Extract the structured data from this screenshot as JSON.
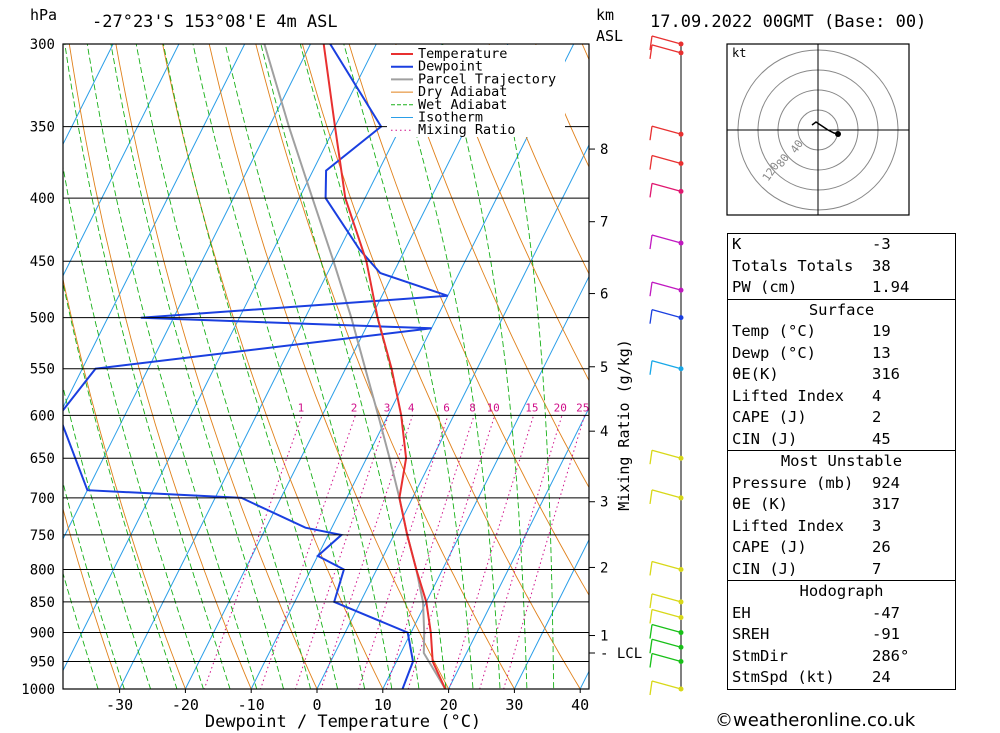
{
  "header": {
    "pressure_unit": "hPa",
    "location": "-27°23'S 153°08'E 4m ASL",
    "km_unit": "km",
    "asl": "ASL",
    "datetime": "17.09.2022 00GMT (Base: 00)"
  },
  "chart_data": {
    "type": "skew-t",
    "xlabel": "Dewpoint / Temperature (°C)",
    "ylabel_right": "Mixing Ratio (g/kg)",
    "xlim": [
      -40,
      40
    ],
    "ylim": [
      1000,
      300
    ],
    "x_ticks": [
      "-30",
      "-20",
      "-10",
      "0",
      "10",
      "20",
      "30",
      "40"
    ],
    "x_tick_values": [
      -30,
      -20,
      -10,
      0,
      10,
      20,
      30,
      40
    ],
    "pressure_levels": [
      300,
      350,
      400,
      450,
      500,
      550,
      600,
      650,
      700,
      750,
      800,
      850,
      900,
      950,
      1000
    ],
    "km_ticks": [
      {
        "km": "1",
        "p": 905
      },
      {
        "km": "2",
        "p": 797
      },
      {
        "km": "3",
        "p": 705
      },
      {
        "km": "4",
        "p": 618
      },
      {
        "km": "5",
        "p": 548
      },
      {
        "km": "6",
        "p": 478
      },
      {
        "km": "7",
        "p": 418
      },
      {
        "km": "8",
        "p": 365
      }
    ],
    "lcl": {
      "label": "LCL",
      "p": 935
    },
    "mixing_ratio_labels": [
      "1",
      "2",
      "3",
      "4",
      "6",
      "8",
      "10",
      "15",
      "20",
      "25"
    ],
    "legend": [
      "Temperature",
      "Dewpoint",
      "Parcel Trajectory",
      "Dry Adiabat",
      "Wet Adiabat",
      "Isotherm",
      "Mixing Ratio"
    ],
    "colors": {
      "temperature": "#e83030",
      "dewpoint": "#1a3fe0",
      "parcel": "#a0a0a0",
      "dry_adiabat": "#e0801a",
      "wet_adiabat": "#18b018",
      "isotherm": "#2a9ee8",
      "mixing_ratio": "#d0108a"
    },
    "temperature": [
      [
        1000,
        19.5
      ],
      [
        950,
        15.5
      ],
      [
        900,
        13
      ],
      [
        850,
        10
      ],
      [
        800,
        6
      ],
      [
        750,
        2
      ],
      [
        700,
        -2
      ],
      [
        650,
        -4
      ],
      [
        600,
        -8
      ],
      [
        550,
        -13
      ],
      [
        500,
        -19
      ],
      [
        450,
        -25
      ],
      [
        400,
        -33
      ],
      [
        350,
        -40
      ],
      [
        300,
        -48
      ]
    ],
    "dewpoint": [
      [
        1000,
        13
      ],
      [
        950,
        12.5
      ],
      [
        900,
        9.5
      ],
      [
        850,
        -4
      ],
      [
        800,
        -5
      ],
      [
        780,
        -10
      ],
      [
        750,
        -8
      ],
      [
        740,
        -14
      ],
      [
        700,
        -26
      ],
      [
        690,
        -50
      ],
      [
        600,
        -60
      ],
      [
        550,
        -58
      ],
      [
        510,
        -10
      ],
      [
        500,
        -55
      ],
      [
        480,
        -10
      ],
      [
        460,
        -22
      ],
      [
        440,
        -27
      ],
      [
        400,
        -36
      ],
      [
        380,
        -38
      ],
      [
        350,
        -33
      ],
      [
        300,
        -47
      ]
    ],
    "parcel": [
      [
        1000,
        19.5
      ],
      [
        935,
        13.5
      ],
      [
        900,
        12
      ],
      [
        850,
        9.5
      ],
      [
        800,
        6
      ],
      [
        750,
        2
      ],
      [
        700,
        -2
      ],
      [
        650,
        -6.5
      ],
      [
        600,
        -11.5
      ],
      [
        550,
        -17
      ],
      [
        500,
        -23
      ],
      [
        450,
        -30
      ],
      [
        400,
        -38
      ],
      [
        350,
        -47
      ],
      [
        300,
        -57
      ]
    ],
    "wind_barbs": [
      [
        1000,
        "#d8d818"
      ],
      [
        950,
        "#18c018"
      ],
      [
        925,
        "#18c018"
      ],
      [
        900,
        "#18c018"
      ],
      [
        875,
        "#d8d818"
      ],
      [
        850,
        "#d8d818"
      ],
      [
        800,
        "#d8d818"
      ],
      [
        700,
        "#d8d818"
      ],
      [
        650,
        "#d8d818"
      ],
      [
        550,
        "#18a8e8"
      ],
      [
        500,
        "#1a3fe0"
      ],
      [
        475,
        "#c018c0"
      ],
      [
        435,
        "#c018c0"
      ],
      [
        395,
        "#e01870"
      ],
      [
        375,
        "#e83030"
      ],
      [
        355,
        "#e83030"
      ],
      [
        305,
        "#e83030"
      ],
      [
        300,
        "#e83030"
      ]
    ]
  },
  "hodograph": {
    "unit": "kt",
    "ring_labels": [
      "40",
      "80",
      "120"
    ]
  },
  "indices": {
    "rows": [
      {
        "k": "K",
        "v": "-3"
      },
      {
        "k": "Totals Totals",
        "v": "38"
      },
      {
        "k": "PW (cm)",
        "v": "1.94"
      }
    ]
  },
  "surface": {
    "title": "Surface",
    "rows": [
      {
        "k": "Temp (°C)",
        "v": "19"
      },
      {
        "k": "Dewp (°C)",
        "v": "13"
      },
      {
        "k": "θE(K)",
        "v": "316"
      },
      {
        "k": "Lifted Index",
        "v": "4"
      },
      {
        "k": "CAPE (J)",
        "v": "2"
      },
      {
        "k": "CIN (J)",
        "v": "45"
      }
    ]
  },
  "most_unstable": {
    "title": "Most Unstable",
    "rows": [
      {
        "k": "Pressure (mb)",
        "v": "924"
      },
      {
        "k": "θE (K)",
        "v": "317"
      },
      {
        "k": "Lifted Index",
        "v": "3"
      },
      {
        "k": "CAPE (J)",
        "v": "26"
      },
      {
        "k": "CIN (J)",
        "v": "7"
      }
    ]
  },
  "hodo_table": {
    "title": "Hodograph",
    "rows": [
      {
        "k": "EH",
        "v": "-47"
      },
      {
        "k": "SREH",
        "v": "-91"
      },
      {
        "k": "StmDir",
        "v": "286°"
      },
      {
        "k": "StmSpd (kt)",
        "v": "24"
      }
    ]
  },
  "credit": "©weatheronline.co.uk"
}
